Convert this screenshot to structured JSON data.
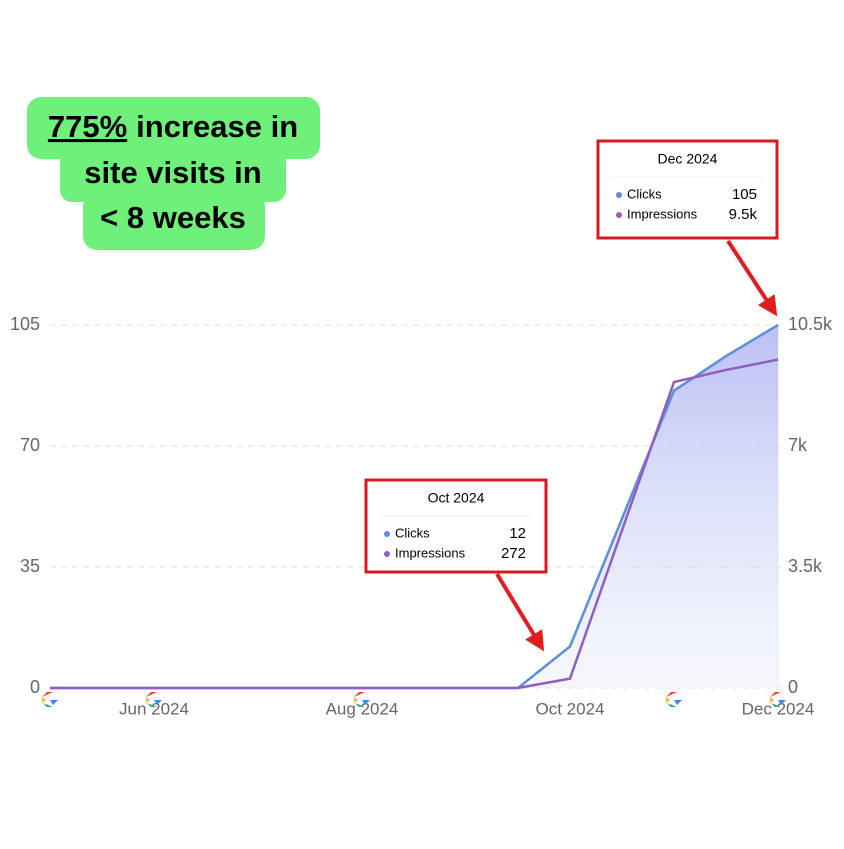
{
  "chart_data": {
    "type": "line",
    "headline": {
      "highlight": "775%",
      "lines": [
        "increase in",
        "site visits in",
        "< 8 weeks"
      ]
    },
    "categories": [
      null,
      null,
      "Jun 2024",
      null,
      null,
      null,
      "Aug 2024",
      null,
      null,
      null,
      "Oct 2024",
      null,
      null,
      null,
      "Dec 2024"
    ],
    "series": [
      {
        "name": "Clicks",
        "color": "#5b8fd6",
        "values": [
          0,
          0,
          0,
          0,
          0,
          0,
          0,
          0,
          0,
          0,
          12,
          49,
          86,
          96,
          105
        ]
      },
      {
        "name": "Impressions",
        "color": "#8e5fc0",
        "axis": "y2",
        "values": [
          0,
          0,
          0,
          0,
          0,
          0,
          0,
          0,
          0,
          0,
          272,
          4560,
          8850,
          9200,
          9500
        ]
      }
    ],
    "ylim": [
      0,
      105
    ],
    "yticks": [
      0,
      35,
      70,
      105
    ],
    "y2lim": [
      0,
      10500
    ],
    "y2ticks": [
      0,
      {
        "value": 3500,
        "label": "3.5k"
      },
      {
        "value": 7000,
        "label": "7k"
      },
      {
        "value": 10500,
        "label": "10.5k"
      }
    ],
    "grid": true,
    "tooltips": [
      {
        "title": "Oct 2024",
        "rows": [
          {
            "label": "Clicks",
            "value": "12"
          },
          {
            "label": "Impressions",
            "value": "272"
          }
        ]
      },
      {
        "title": "Dec 2024",
        "rows": [
          {
            "label": "Clicks",
            "value": "105"
          },
          {
            "label": "Impressions",
            "value": "9.5k"
          }
        ]
      }
    ]
  }
}
